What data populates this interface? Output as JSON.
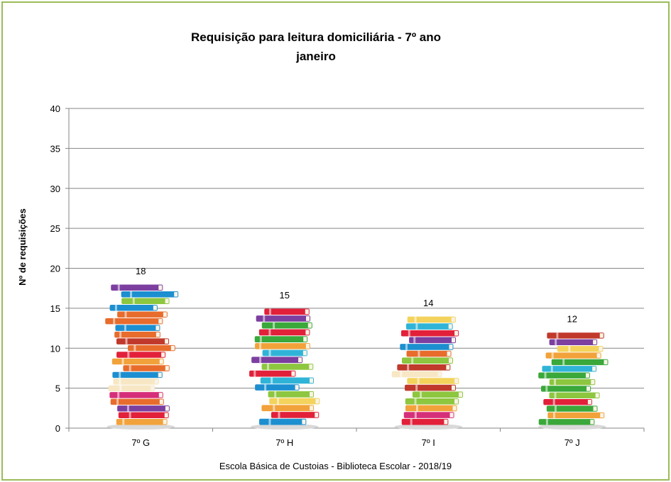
{
  "chart_data": {
    "type": "bar",
    "title": "Requisição para leitura domiciliária  - 7º ano",
    "subtitle": "janeiro",
    "categories": [
      "7º G",
      "7º H",
      "7º I",
      "7º J"
    ],
    "values": [
      18,
      15,
      14,
      12
    ],
    "ylabel": "Nº de requisições",
    "xlabel": "",
    "ylim": [
      0,
      40
    ],
    "yticks": [
      0,
      5,
      10,
      15,
      20,
      25,
      30,
      35,
      40
    ],
    "grid": true,
    "bar_style": "stacked-books-picture"
  },
  "footer": "Escola Básica de Custoias - Biblioteca Escolar  - 2018/19",
  "colors": {
    "frame": "#9bbb59",
    "grid": "#868686",
    "book_palette": [
      "#e2203a",
      "#f2a23a",
      "#2fb4d8",
      "#7c3fa0",
      "#3aa83a",
      "#e86c2c",
      "#d62f7a",
      "#f3d35b",
      "#1c8fd0",
      "#c0392b",
      "#8dc63f",
      "#f7e7c4"
    ]
  }
}
